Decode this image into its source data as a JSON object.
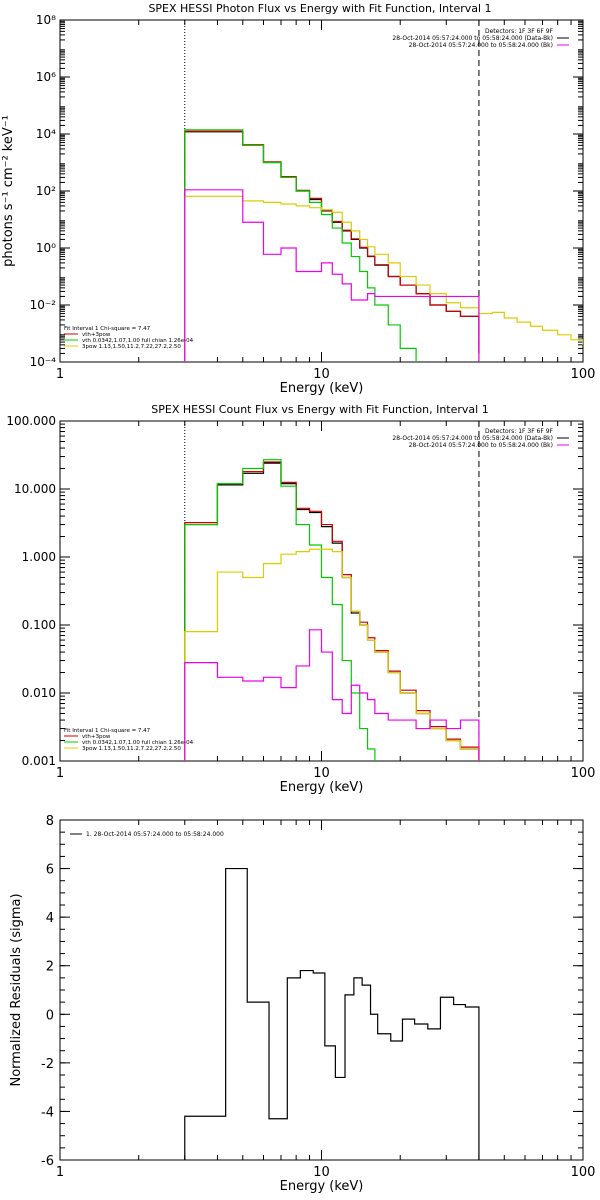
{
  "chart_data": [
    {
      "type": "line",
      "title": "SPEX HESSI Photon Flux vs Energy with Fit Function, Interval 1",
      "xlabel": "Energy (keV)",
      "ylabel": "photons s⁻¹ cm⁻² keV⁻¹",
      "xscale": "log",
      "yscale": "log",
      "xlim": [
        1,
        100
      ],
      "ylim": [
        0.0001,
        100000000
      ],
      "x_ticks": [
        "1",
        "10",
        "100"
      ],
      "y_ticks": [
        "10⁻⁴",
        "10⁻²",
        "10⁰",
        "10²",
        "10⁴",
        "10⁶",
        "10⁸"
      ],
      "legend_detectors": [
        "Detectors: 1F 3F 6F 9F",
        "28-Oct-2014 05:57:24.000 to 05:58:24.000 (Data-Bk)",
        "28-Oct-2014 05:57:24.000 to 05:58:24.000 (Bk)"
      ],
      "legend_fit": [
        "Fit Interval 1   Chi-square = 7.47",
        "vth+3pow",
        "vth 0.0342,1.07,1.00  full chian 1.26e-04",
        "3pow 1.13,1.50,11.2,7.22,27.2,2.50"
      ],
      "vlines": [
        3.0,
        40.0
      ],
      "series": [
        {
          "name": "28-Oct-2014 05:57:24.000 to 05:58:24.000 (Data-Bk)",
          "color": "#000000",
          "x": [
            3,
            4,
            5,
            6,
            7,
            8,
            9,
            10,
            11,
            12,
            13,
            14,
            15,
            16,
            18,
            20,
            23,
            26,
            30,
            34,
            40
          ],
          "y": [
            12000,
            12000,
            4000,
            1000,
            300,
            100,
            50,
            20,
            8,
            4,
            2,
            1,
            0.5,
            0.25,
            0.1,
            0.05,
            0.025,
            0.01,
            0.006,
            0.004,
            0.0002
          ]
        },
        {
          "name": "vth+3pow",
          "color": "#cc0000",
          "x": [
            3,
            4,
            5,
            6,
            7,
            8,
            9,
            10,
            11,
            12,
            13,
            14,
            15,
            16,
            18,
            20,
            23,
            26,
            30,
            34,
            40
          ],
          "y": [
            12500,
            12500,
            4200,
            1050,
            320,
            105,
            55,
            21,
            8.5,
            4.2,
            2.1,
            1.05,
            0.52,
            0.26,
            0.1,
            0.05,
            0.025,
            0.01,
            0.006,
            0.004,
            0.0002
          ]
        },
        {
          "name": "vth 0.0342,1.07,1.00  full chian 1.26e-04",
          "color": "#00cc00",
          "x": [
            3,
            4,
            5,
            6,
            7,
            8,
            9,
            10,
            11,
            12,
            13,
            14,
            15,
            16,
            18,
            20,
            23
          ],
          "y": [
            14000,
            14000,
            4000,
            1000,
            300,
            100,
            40,
            15,
            5,
            1.5,
            0.5,
            0.15,
            0.04,
            0.01,
            0.002,
            0.0003,
            1e-05
          ]
        },
        {
          "name": "3pow 1.13,1.50,11.2,7.22,27.2,2.50",
          "color": "#ddcc00",
          "x": [
            3,
            4,
            5,
            6,
            7,
            8,
            9,
            10,
            11,
            12,
            13,
            14,
            15,
            16,
            18,
            20,
            23,
            26,
            30,
            34,
            40,
            45,
            50,
            56,
            63,
            70,
            80,
            90,
            100
          ],
          "y": [
            65,
            65,
            45,
            40,
            35,
            30,
            26,
            22,
            18,
            8,
            4,
            2,
            1.1,
            0.6,
            0.3,
            0.1,
            0.05,
            0.025,
            0.012,
            0.008,
            0.005,
            0.0055,
            0.0035,
            0.0025,
            0.0018,
            0.0013,
            0.0009,
            0.0006,
            0.0004
          ]
        },
        {
          "name": "28-Oct-2014 05:57:24.000 to 05:58:24.000 (Bk)",
          "color": "#ee00ee",
          "x": [
            3,
            4,
            5,
            6,
            7,
            8,
            9,
            10,
            11,
            12,
            13,
            14,
            15,
            16,
            18,
            20,
            23,
            26,
            30,
            34,
            40
          ],
          "y": [
            110,
            110,
            8,
            0.6,
            1,
            0.15,
            0.15,
            0.3,
            0.12,
            0.055,
            0.015,
            0.015,
            0.025,
            0.02,
            0.02,
            0.02,
            0.02,
            0.02,
            0.02,
            0.02,
            1e-05
          ]
        }
      ]
    },
    {
      "type": "line",
      "title": "SPEX HESSI Count Flux vs Energy with Fit Function, Interval 1",
      "xlabel": "Energy (keV)",
      "ylabel": "",
      "xscale": "log",
      "yscale": "log",
      "xlim": [
        1,
        100
      ],
      "ylim": [
        0.001,
        100
      ],
      "x_ticks": [
        "1",
        "10",
        "100"
      ],
      "y_ticks": [
        "0.001",
        "0.010",
        "0.100",
        "1.000",
        "10.000",
        "100.000"
      ],
      "legend_detectors": [
        "Detectors: 1F 3F 6F 9F",
        "28-Oct-2014 05:57:24.000 to 05:58:24.000 (Data-Bk)",
        "28-Oct-2014 05:57:24.000 to 05:58:24.000 (Bk)"
      ],
      "legend_fit": [
        "Fit Interval 1   Chi-square = 7.47",
        "vth+3pow",
        "vth 0.0342,1.07,1.00  full chian 1.26e-04",
        "3pow 1.13,1.50,11.2,7.22,27.2,2.50"
      ],
      "vlines": [
        3.0,
        40.0
      ],
      "series": [
        {
          "name": "28-Oct-2014 05:57:24.000 to 05:58:24.000 (Data-Bk)",
          "color": "#000000",
          "x": [
            3,
            4,
            5,
            6,
            7,
            8,
            9,
            10,
            11,
            12,
            13,
            14,
            15,
            16,
            18,
            20,
            23,
            26,
            30,
            34,
            40
          ],
          "y": [
            3,
            11.5,
            17,
            24,
            12,
            5,
            4.5,
            2.8,
            1.6,
            0.5,
            0.15,
            0.1,
            0.06,
            0.04,
            0.02,
            0.01,
            0.005,
            0.003,
            0.002,
            0.0015,
            0.001
          ]
        },
        {
          "name": "vth+3pow",
          "color": "#cc0000",
          "x": [
            3,
            4,
            5,
            6,
            7,
            8,
            9,
            10,
            11,
            12,
            13,
            14,
            15,
            16,
            18,
            20,
            23,
            26,
            30,
            34,
            40
          ],
          "y": [
            3.2,
            12,
            18,
            25,
            12.5,
            5.2,
            4.7,
            3,
            1.7,
            0.55,
            0.16,
            0.11,
            0.065,
            0.042,
            0.021,
            0.011,
            0.0055,
            0.0032,
            0.0021,
            0.0016,
            0.001
          ]
        },
        {
          "name": "vth 0.0342,1.07,1.00  full chian 1.26e-04",
          "color": "#00cc00",
          "x": [
            3,
            4,
            5,
            6,
            7,
            8,
            9,
            10,
            11,
            12,
            13,
            14,
            15,
            16
          ],
          "y": [
            3,
            12,
            20,
            27,
            11,
            3,
            1.5,
            0.5,
            0.2,
            0.03,
            0.01,
            0.003,
            0.0015,
            0.0001
          ]
        },
        {
          "name": "3pow 1.13,1.50,11.2,7.22,27.2,2.50",
          "color": "#ddcc00",
          "x": [
            3,
            4,
            5,
            6,
            7,
            8,
            9,
            10,
            11,
            12,
            13,
            14,
            15,
            16,
            18,
            20,
            23,
            26,
            30,
            34,
            40
          ],
          "y": [
            0.08,
            0.6,
            0.5,
            0.8,
            1.1,
            1.2,
            1.3,
            1.3,
            1.2,
            0.5,
            0.16,
            0.1,
            0.06,
            0.04,
            0.02,
            0.01,
            0.005,
            0.003,
            0.002,
            0.0015,
            0.001
          ]
        },
        {
          "name": "28-Oct-2014 05:57:24.000 to 05:58:24.000 (Bk)",
          "color": "#ee00ee",
          "x": [
            3,
            4,
            5,
            6,
            7,
            8,
            9,
            10,
            11,
            12,
            13,
            14,
            15,
            16,
            18,
            20,
            23,
            26,
            30,
            34,
            40
          ],
          "y": [
            0.028,
            0.017,
            0.015,
            0.017,
            0.012,
            0.025,
            0.085,
            0.04,
            0.008,
            0.005,
            0.013,
            0.01,
            0.008,
            0.005,
            0.004,
            0.004,
            0.003,
            0.004,
            0.003,
            0.004,
            0.001
          ]
        }
      ]
    },
    {
      "type": "line",
      "title": "",
      "xlabel": "Energy (keV)",
      "ylabel": "Normalized Residuals (sigma)",
      "xscale": "log",
      "yscale": "linear",
      "xlim": [
        1,
        100
      ],
      "ylim": [
        -6,
        8
      ],
      "x_ticks": [
        "1",
        "10",
        "100"
      ],
      "y_ticks": [
        "-6",
        "-4",
        "-2",
        "0",
        "2",
        "4",
        "6",
        "8"
      ],
      "legend": "1. 28-Oct-2014 05:57:24.000 to 05:58:24.000",
      "series": [
        {
          "name": "1. 28-Oct-2014 05:57:24.000 to 05:58:24.000",
          "color": "#000000",
          "x": [
            3,
            4.3,
            5.2,
            6.3,
            7.4,
            8.3,
            9.3,
            10.3,
            11.3,
            12.3,
            13.3,
            14.3,
            15.4,
            16.4,
            18.4,
            20.4,
            22.7,
            25.5,
            28.5,
            32,
            35.5,
            40
          ],
          "y": [
            -4.2,
            6,
            0.5,
            -4.3,
            1.5,
            1.8,
            1.7,
            -1.3,
            -2.6,
            0.8,
            1.5,
            1.2,
            0.0,
            -0.8,
            -1.1,
            -0.2,
            -0.4,
            -0.6,
            0.7,
            0.4,
            0.3,
            -6
          ]
        }
      ]
    }
  ]
}
